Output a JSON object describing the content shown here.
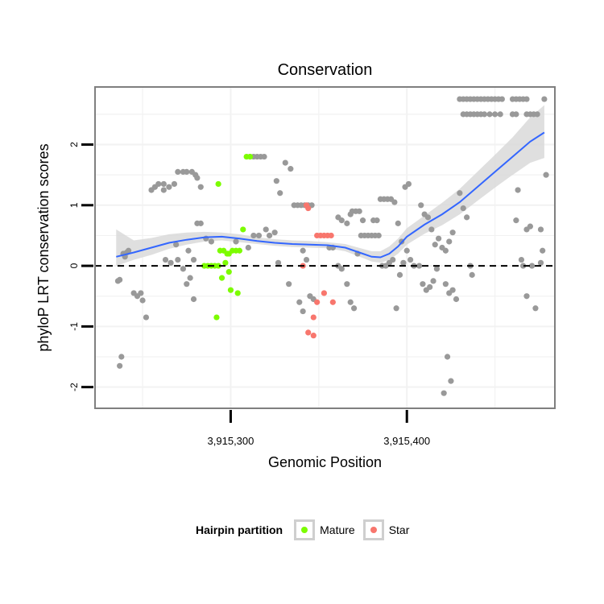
{
  "chart_data": {
    "type": "scatter",
    "title": "Conservation",
    "xlabel": "Genomic Position",
    "ylabel": "phyloP LRT conservation scores",
    "xlim": [
      3915223,
      3915484
    ],
    "ylim": [
      -2.35,
      2.95
    ],
    "x_ticks": [
      3915300,
      3915400
    ],
    "x_tick_labels": [
      "3,915,300",
      "3,915,400"
    ],
    "y_ticks": [
      -2,
      -1,
      0,
      1,
      2
    ],
    "y_tick_labels": [
      "-2",
      "-1",
      "0",
      "1",
      "2"
    ],
    "grid": true,
    "reference_line": {
      "y": 0,
      "style": "dashed",
      "color": "#000000"
    },
    "colors": {
      "other": "#999999",
      "Mature": "#7cfc00",
      "Star": "#f8766d",
      "smooth": "#3366ff",
      "band": "#d9d9d9",
      "panel_border": "#7f7f7f",
      "grid": "#f2f2f2"
    },
    "legend": {
      "title": "Hairpin partition",
      "position": "bottom",
      "entries": [
        {
          "label": "Mature",
          "color": "#7cfc00"
        },
        {
          "label": "Star",
          "color": "#f8766d"
        }
      ]
    },
    "series": [
      {
        "group": "other",
        "points": [
          [
            3915236,
            -0.25
          ],
          [
            3915237,
            -0.23
          ],
          [
            3915238,
            -1.5
          ],
          [
            3915237,
            -1.65
          ],
          [
            3915239,
            0.2
          ],
          [
            3915241,
            0.22
          ],
          [
            3915242,
            0.25
          ],
          [
            3915240,
            0.15
          ],
          [
            3915245,
            -0.45
          ],
          [
            3915247,
            -0.5
          ],
          [
            3915249,
            -0.45
          ],
          [
            3915250,
            -0.57
          ],
          [
            3915252,
            -0.85
          ],
          [
            3915255,
            1.25
          ],
          [
            3915257,
            1.3
          ],
          [
            3915259,
            1.35
          ],
          [
            3915262,
            1.35
          ],
          [
            3915265,
            1.3
          ],
          [
            3915268,
            1.35
          ],
          [
            3915262,
            1.25
          ],
          [
            3915270,
            1.55
          ],
          [
            3915273,
            1.55
          ],
          [
            3915275,
            1.55
          ],
          [
            3915278,
            1.55
          ],
          [
            3915280,
            1.5
          ],
          [
            3915281,
            1.45
          ],
          [
            3915283,
            1.3
          ],
          [
            3915263,
            0.1
          ],
          [
            3915266,
            0.05
          ],
          [
            3915269,
            0.35
          ],
          [
            3915270,
            0.1
          ],
          [
            3915273,
            -0.05
          ],
          [
            3915275,
            -0.3
          ],
          [
            3915277,
            -0.2
          ],
          [
            3915279,
            -0.55
          ],
          [
            3915281,
            0.7
          ],
          [
            3915283,
            0.7
          ],
          [
            3915279,
            0.1
          ],
          [
            3915276,
            0.25
          ],
          [
            3915286,
            0.45
          ],
          [
            3915289,
            0.4
          ],
          [
            3915303,
            0.4
          ],
          [
            3915310,
            0.3
          ],
          [
            3915313,
            0.5
          ],
          [
            3915316,
            0.5
          ],
          [
            3915320,
            0.6
          ],
          [
            3915322,
            0.5
          ],
          [
            3915325,
            0.55
          ],
          [
            3915311,
            1.8
          ],
          [
            3915313,
            1.8
          ],
          [
            3915315,
            1.8
          ],
          [
            3915317,
            1.8
          ],
          [
            3915319,
            1.8
          ],
          [
            3915326,
            1.4
          ],
          [
            3915328,
            1.2
          ],
          [
            3915331,
            1.7
          ],
          [
            3915334,
            1.6
          ],
          [
            3915336,
            1.0
          ],
          [
            3915338,
            1.0
          ],
          [
            3915340,
            1.0
          ],
          [
            3915342,
            1.0
          ],
          [
            3915344,
            1.0
          ],
          [
            3915346,
            1.0
          ],
          [
            3915341,
            0.25
          ],
          [
            3915343,
            0.1
          ],
          [
            3915327,
            0.05
          ],
          [
            3915333,
            -0.3
          ],
          [
            3915339,
            -0.6
          ],
          [
            3915341,
            -0.75
          ],
          [
            3915345,
            -0.5
          ],
          [
            3915347,
            -0.55
          ],
          [
            3915356,
            0.3
          ],
          [
            3915358,
            0.3
          ],
          [
            3915361,
            0.0
          ],
          [
            3915363,
            -0.05
          ],
          [
            3915366,
            -0.3
          ],
          [
            3915368,
            -0.6
          ],
          [
            3915370,
            -0.7
          ],
          [
            3915372,
            0.2
          ],
          [
            3915361,
            0.8
          ],
          [
            3915363,
            0.75
          ],
          [
            3915366,
            0.7
          ],
          [
            3915368,
            0.85
          ],
          [
            3915369,
            0.9
          ],
          [
            3915371,
            0.9
          ],
          [
            3915373,
            0.9
          ],
          [
            3915375,
            0.75
          ],
          [
            3915374,
            0.5
          ],
          [
            3915376,
            0.5
          ],
          [
            3915378,
            0.5
          ],
          [
            3915380,
            0.5
          ],
          [
            3915382,
            0.5
          ],
          [
            3915384,
            0.5
          ],
          [
            3915381,
            0.75
          ],
          [
            3915383,
            0.75
          ],
          [
            3915385,
            1.1
          ],
          [
            3915387,
            1.1
          ],
          [
            3915389,
            1.1
          ],
          [
            3915391,
            1.1
          ],
          [
            3915393,
            1.05
          ],
          [
            3915395,
            0.7
          ],
          [
            3915397,
            0.4
          ],
          [
            3915399,
            1.3
          ],
          [
            3915401,
            1.35
          ],
          [
            3915386,
            0.0
          ],
          [
            3915388,
            0.0
          ],
          [
            3915390,
            0.05
          ],
          [
            3915392,
            0.1
          ],
          [
            3915394,
            -0.7
          ],
          [
            3915396,
            -0.15
          ],
          [
            3915398,
            0.05
          ],
          [
            3915400,
            0.25
          ],
          [
            3915402,
            0.1
          ],
          [
            3915404,
            0.0
          ],
          [
            3915407,
            0.0
          ],
          [
            3915409,
            -0.3
          ],
          [
            3915411,
            -0.4
          ],
          [
            3915413,
            -0.35
          ],
          [
            3915415,
            -0.25
          ],
          [
            3915417,
            -0.05
          ],
          [
            3915408,
            1.0
          ],
          [
            3915410,
            0.85
          ],
          [
            3915412,
            0.8
          ],
          [
            3915414,
            0.6
          ],
          [
            3915416,
            0.35
          ],
          [
            3915418,
            0.45
          ],
          [
            3915420,
            0.3
          ],
          [
            3915422,
            0.25
          ],
          [
            3915424,
            0.4
          ],
          [
            3915426,
            0.55
          ],
          [
            3915421,
            -2.1
          ],
          [
            3915423,
            -1.5
          ],
          [
            3915425,
            -1.9
          ],
          [
            3915422,
            -0.3
          ],
          [
            3915424,
            -0.45
          ],
          [
            3915426,
            -0.4
          ],
          [
            3915428,
            -0.55
          ],
          [
            3915430,
            1.2
          ],
          [
            3915432,
            0.95
          ],
          [
            3915434,
            0.8
          ],
          [
            3915436,
            0.0
          ],
          [
            3915437,
            -0.15
          ],
          [
            3915430,
            2.75
          ],
          [
            3915432,
            2.75
          ],
          [
            3915434,
            2.75
          ],
          [
            3915436,
            2.75
          ],
          [
            3915438,
            2.75
          ],
          [
            3915440,
            2.75
          ],
          [
            3915442,
            2.75
          ],
          [
            3915444,
            2.75
          ],
          [
            3915446,
            2.75
          ],
          [
            3915448,
            2.75
          ],
          [
            3915450,
            2.75
          ],
          [
            3915452,
            2.75
          ],
          [
            3915454,
            2.75
          ],
          [
            3915460,
            2.75
          ],
          [
            3915462,
            2.75
          ],
          [
            3915464,
            2.75
          ],
          [
            3915466,
            2.75
          ],
          [
            3915468,
            2.75
          ],
          [
            3915478,
            2.75
          ],
          [
            3915432,
            2.5
          ],
          [
            3915434,
            2.5
          ],
          [
            3915436,
            2.5
          ],
          [
            3915438,
            2.5
          ],
          [
            3915440,
            2.5
          ],
          [
            3915442,
            2.5
          ],
          [
            3915444,
            2.5
          ],
          [
            3915447,
            2.5
          ],
          [
            3915450,
            2.5
          ],
          [
            3915453,
            2.5
          ],
          [
            3915460,
            2.5
          ],
          [
            3915462,
            2.5
          ],
          [
            3915468,
            2.5
          ],
          [
            3915470,
            2.5
          ],
          [
            3915472,
            2.5
          ],
          [
            3915474,
            2.5
          ],
          [
            3915479,
            1.5
          ],
          [
            3915476,
            0.6
          ],
          [
            3915477,
            0.25
          ],
          [
            3915476,
            0.05
          ],
          [
            3915473,
            -0.7
          ],
          [
            3915470,
            0.65
          ],
          [
            3915468,
            0.6
          ],
          [
            3915466,
            0.0
          ],
          [
            3915463,
            1.25
          ],
          [
            3915462,
            0.75
          ],
          [
            3915465,
            0.1
          ],
          [
            3915468,
            -0.5
          ],
          [
            3915471,
            0.0
          ]
        ]
      },
      {
        "group": "Mature",
        "points": [
          [
            3915285,
            0.0
          ],
          [
            3915287,
            0.0
          ],
          [
            3915289,
            0.0
          ],
          [
            3915291,
            0.0
          ],
          [
            3915293,
            0.0
          ],
          [
            3915293,
            1.35
          ],
          [
            3915294,
            0.25
          ],
          [
            3915296,
            0.25
          ],
          [
            3915298,
            0.2
          ],
          [
            3915299,
            0.2
          ],
          [
            3915301,
            0.25
          ],
          [
            3915303,
            0.25
          ],
          [
            3915305,
            0.25
          ],
          [
            3915307,
            0.6
          ],
          [
            3915309,
            1.8
          ],
          [
            3915311,
            1.8
          ],
          [
            3915295,
            -0.2
          ],
          [
            3915297,
            0.05
          ],
          [
            3915299,
            -0.1
          ],
          [
            3915300,
            -0.4
          ],
          [
            3915304,
            -0.45
          ],
          [
            3915292,
            -0.85
          ]
        ]
      },
      {
        "group": "Star",
        "points": [
          [
            3915341,
            0.0
          ],
          [
            3915343,
            1.0
          ],
          [
            3915344,
            0.95
          ],
          [
            3915349,
            0.5
          ],
          [
            3915351,
            0.5
          ],
          [
            3915353,
            0.5
          ],
          [
            3915355,
            0.5
          ],
          [
            3915357,
            0.5
          ],
          [
            3915347,
            -0.85
          ],
          [
            3915349,
            -0.6
          ],
          [
            3915353,
            -0.45
          ],
          [
            3915358,
            -0.6
          ],
          [
            3915344,
            -1.1
          ],
          [
            3915347,
            -1.15
          ]
        ]
      },
      {
        "group": "smooth",
        "points": [
          [
            3915235,
            0.15
          ],
          [
            3915245,
            0.22
          ],
          [
            3915255,
            0.3
          ],
          [
            3915265,
            0.38
          ],
          [
            3915275,
            0.43
          ],
          [
            3915285,
            0.47
          ],
          [
            3915295,
            0.48
          ],
          [
            3915305,
            0.45
          ],
          [
            3915315,
            0.41
          ],
          [
            3915325,
            0.38
          ],
          [
            3915335,
            0.36
          ],
          [
            3915345,
            0.35
          ],
          [
            3915355,
            0.34
          ],
          [
            3915365,
            0.3
          ],
          [
            3915375,
            0.2
          ],
          [
            3915380,
            0.15
          ],
          [
            3915385,
            0.14
          ],
          [
            3915390,
            0.2
          ],
          [
            3915395,
            0.32
          ],
          [
            3915400,
            0.48
          ],
          [
            3915410,
            0.68
          ],
          [
            3915420,
            0.85
          ],
          [
            3915430,
            1.05
          ],
          [
            3915440,
            1.3
          ],
          [
            3915450,
            1.55
          ],
          [
            3915460,
            1.8
          ],
          [
            3915470,
            2.05
          ],
          [
            3915478,
            2.2
          ]
        ],
        "lower": [
          0.0,
          0.1,
          0.18,
          0.28,
          0.35,
          0.4,
          0.42,
          0.39,
          0.36,
          0.33,
          0.31,
          0.3,
          0.29,
          0.24,
          0.13,
          0.07,
          0.05,
          0.1,
          0.2,
          0.35,
          0.53,
          0.67,
          0.85,
          1.07,
          1.29,
          1.5,
          1.7,
          1.78
        ],
        "upper": [
          0.6,
          0.42,
          0.46,
          0.52,
          0.55,
          0.56,
          0.55,
          0.52,
          0.47,
          0.44,
          0.42,
          0.41,
          0.39,
          0.36,
          0.28,
          0.24,
          0.24,
          0.32,
          0.45,
          0.62,
          0.83,
          1.04,
          1.27,
          1.55,
          1.83,
          2.12,
          2.45,
          2.65
        ]
      }
    ]
  }
}
